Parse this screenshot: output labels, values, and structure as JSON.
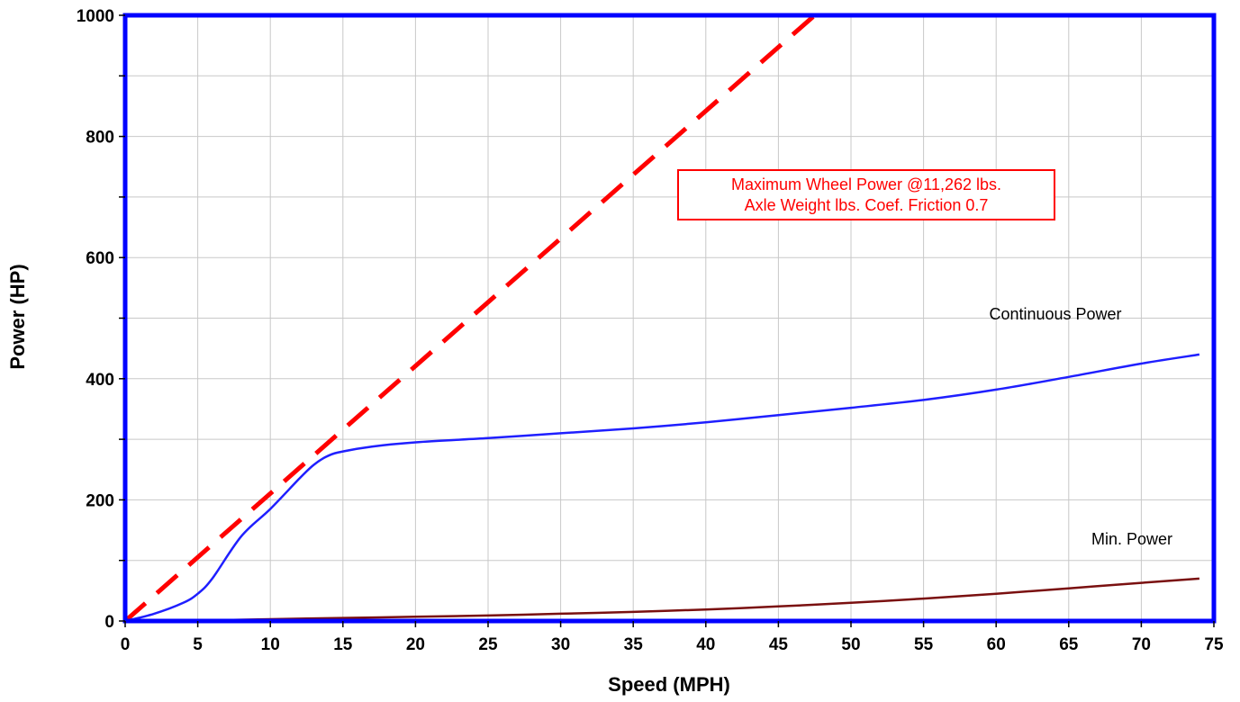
{
  "chart_data": {
    "type": "line",
    "title": "",
    "xlabel": "Speed  (MPH)",
    "ylabel": "Power  (HP)",
    "xlim": [
      0,
      75
    ],
    "ylim": [
      0,
      1000
    ],
    "x_ticks": [
      "0",
      "5",
      "10",
      "15",
      "20",
      "25",
      "30",
      "35",
      "40",
      "45",
      "50",
      "55",
      "60",
      "65",
      "70",
      "75"
    ],
    "y_ticks": [
      "0",
      "200",
      "400",
      "600",
      "800",
      "1000"
    ],
    "grid": true,
    "annotation": {
      "lines": [
        "Maximum Wheel Power @11,262 lbs.",
        "Axle Weight lbs. Coef. Friction 0.7"
      ],
      "color": "#ff0000"
    },
    "series": [
      {
        "label": "",
        "color": "#ff0000",
        "style": "dashed",
        "x": [
          0,
          47.5
        ],
        "y": [
          0,
          1000
        ]
      },
      {
        "label": "Continuous  Power",
        "color": "#1f1fff",
        "style": "solid",
        "x": [
          0,
          2,
          4,
          5,
          6,
          8,
          10,
          12,
          13,
          14,
          15,
          17,
          20,
          25,
          30,
          35,
          40,
          45,
          50,
          55,
          60,
          65,
          70,
          74
        ],
        "y": [
          0,
          12,
          30,
          45,
          70,
          140,
          185,
          235,
          258,
          273,
          280,
          288,
          295,
          302,
          310,
          318,
          328,
          340,
          352,
          365,
          382,
          403,
          425,
          440
        ]
      },
      {
        "label": "Min. Power",
        "color": "#7a1010",
        "style": "solid",
        "x": [
          0,
          5,
          10,
          15,
          20,
          25,
          30,
          35,
          40,
          45,
          50,
          55,
          60,
          65,
          70,
          74
        ],
        "y": [
          0,
          1,
          3,
          5,
          7,
          9,
          12,
          15,
          19,
          24,
          30,
          37,
          45,
          54,
          63,
          70
        ]
      }
    ]
  }
}
